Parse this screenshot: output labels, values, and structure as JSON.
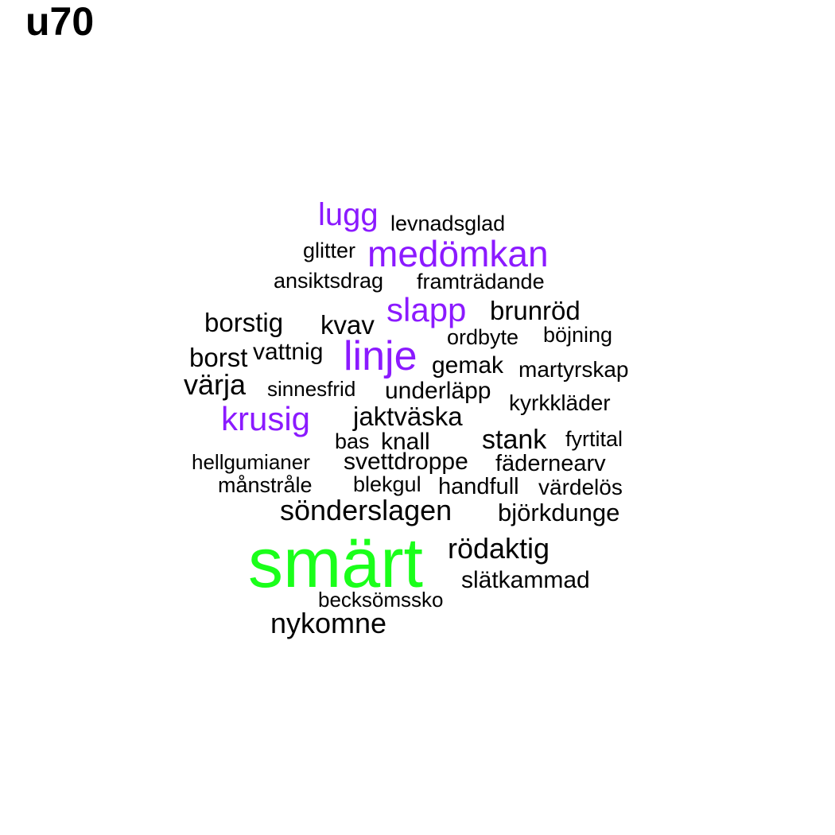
{
  "title": "u70",
  "colors": {
    "highest": "#1aff1a",
    "high": "#8b1aff",
    "normal": "#000000"
  },
  "words": [
    {
      "text": "smärt",
      "tier": "highest"
    },
    {
      "text": "lugg",
      "tier": "high"
    },
    {
      "text": "medömkan",
      "tier": "high"
    },
    {
      "text": "slapp",
      "tier": "high"
    },
    {
      "text": "linje",
      "tier": "high"
    },
    {
      "text": "krusig",
      "tier": "high"
    },
    {
      "text": "levnadsglad",
      "tier": "normal"
    },
    {
      "text": "glitter",
      "tier": "normal"
    },
    {
      "text": "ansiktsdrag",
      "tier": "normal"
    },
    {
      "text": "framträdande",
      "tier": "normal"
    },
    {
      "text": "brunröd",
      "tier": "normal"
    },
    {
      "text": "borstig",
      "tier": "normal"
    },
    {
      "text": "kvav",
      "tier": "normal"
    },
    {
      "text": "ordbyte",
      "tier": "normal"
    },
    {
      "text": "böjning",
      "tier": "normal"
    },
    {
      "text": "borst",
      "tier": "normal"
    },
    {
      "text": "vattnig",
      "tier": "normal"
    },
    {
      "text": "gemak",
      "tier": "normal"
    },
    {
      "text": "martyrskap",
      "tier": "normal"
    },
    {
      "text": "värja",
      "tier": "normal"
    },
    {
      "text": "sinnesfrid",
      "tier": "normal"
    },
    {
      "text": "underläpp",
      "tier": "normal"
    },
    {
      "text": "kyrkkläder",
      "tier": "normal"
    },
    {
      "text": "jaktväska",
      "tier": "normal"
    },
    {
      "text": "bas",
      "tier": "normal"
    },
    {
      "text": "knall",
      "tier": "normal"
    },
    {
      "text": "stank",
      "tier": "normal"
    },
    {
      "text": "fyrtital",
      "tier": "normal"
    },
    {
      "text": "hellgumianer",
      "tier": "normal"
    },
    {
      "text": "svettdroppe",
      "tier": "normal"
    },
    {
      "text": "fädernearv",
      "tier": "normal"
    },
    {
      "text": "månstråle",
      "tier": "normal"
    },
    {
      "text": "blekgul",
      "tier": "normal"
    },
    {
      "text": "handfull",
      "tier": "normal"
    },
    {
      "text": "värdelös",
      "tier": "normal"
    },
    {
      "text": "sönderslagen",
      "tier": "normal"
    },
    {
      "text": "björkdunge",
      "tier": "normal"
    },
    {
      "text": "rödaktig",
      "tier": "normal"
    },
    {
      "text": "slätkammad",
      "tier": "normal"
    },
    {
      "text": "becksömssko",
      "tier": "normal"
    },
    {
      "text": "nykomne",
      "tier": "normal"
    }
  ]
}
